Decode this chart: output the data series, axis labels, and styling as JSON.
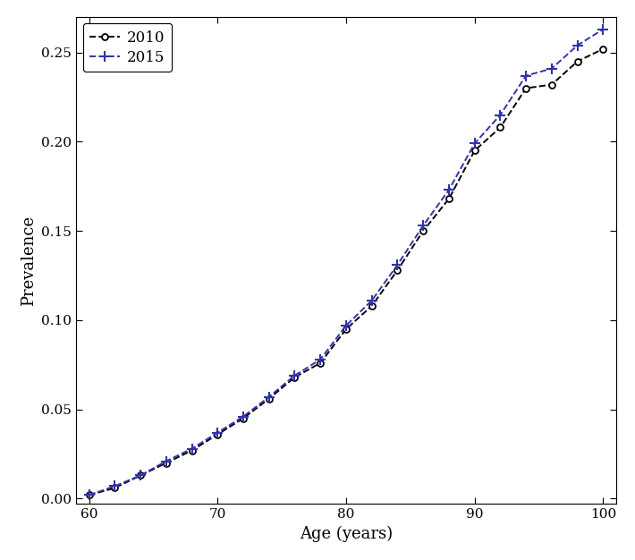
{
  "x": [
    60,
    62,
    64,
    66,
    68,
    70,
    72,
    74,
    76,
    78,
    80,
    82,
    84,
    86,
    88,
    90,
    92,
    94,
    96,
    98,
    100
  ],
  "y_2010": [
    0.002,
    0.006,
    0.013,
    0.02,
    0.027,
    0.036,
    0.045,
    0.056,
    0.068,
    0.076,
    0.095,
    0.108,
    0.128,
    0.15,
    0.168,
    0.195,
    0.208,
    0.23,
    0.232,
    0.245,
    0.252
  ],
  "y_2015": [
    0.002,
    0.007,
    0.013,
    0.021,
    0.028,
    0.037,
    0.046,
    0.057,
    0.069,
    0.078,
    0.097,
    0.111,
    0.131,
    0.153,
    0.173,
    0.199,
    0.215,
    0.237,
    0.241,
    0.254,
    0.263
  ],
  "color_2010": "#000000",
  "color_2015": "#3333aa",
  "xlabel": "Age (years)",
  "ylabel": "Prevalence",
  "xlim": [
    59,
    101
  ],
  "ylim": [
    -0.003,
    0.27
  ],
  "xticks": [
    60,
    70,
    80,
    90,
    100
  ],
  "yticks": [
    0.0,
    0.05,
    0.1,
    0.15,
    0.2,
    0.25
  ],
  "legend_labels": [
    "2010",
    "2015"
  ],
  "background_color": "#ffffff",
  "figsize": [
    7.1,
    6.26
  ],
  "dpi": 100
}
